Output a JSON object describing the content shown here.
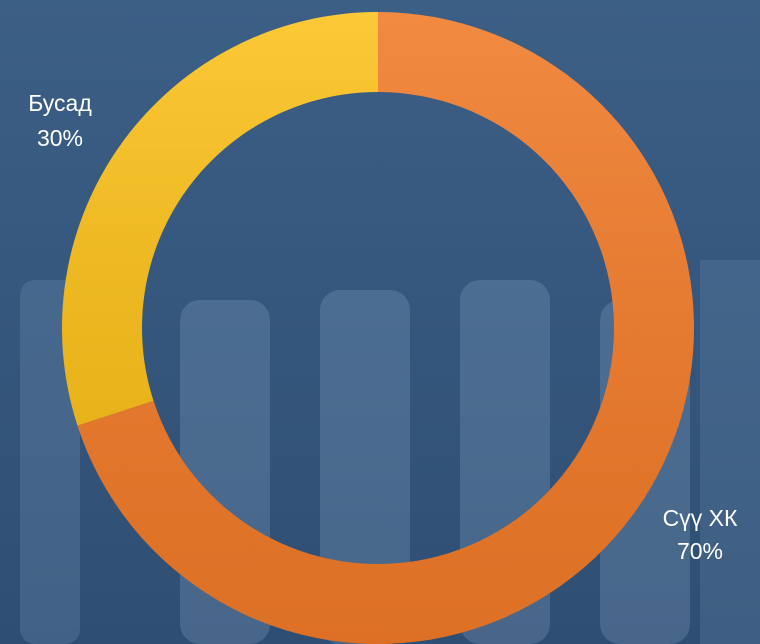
{
  "chart_data": {
    "type": "donut",
    "categories": [
      "Сүү ХК",
      "Бусад"
    ],
    "values": [
      70,
      30
    ],
    "value_labels": [
      "70%",
      "30%"
    ],
    "colors": [
      "#f07a28",
      "#fcc21c"
    ]
  }
}
